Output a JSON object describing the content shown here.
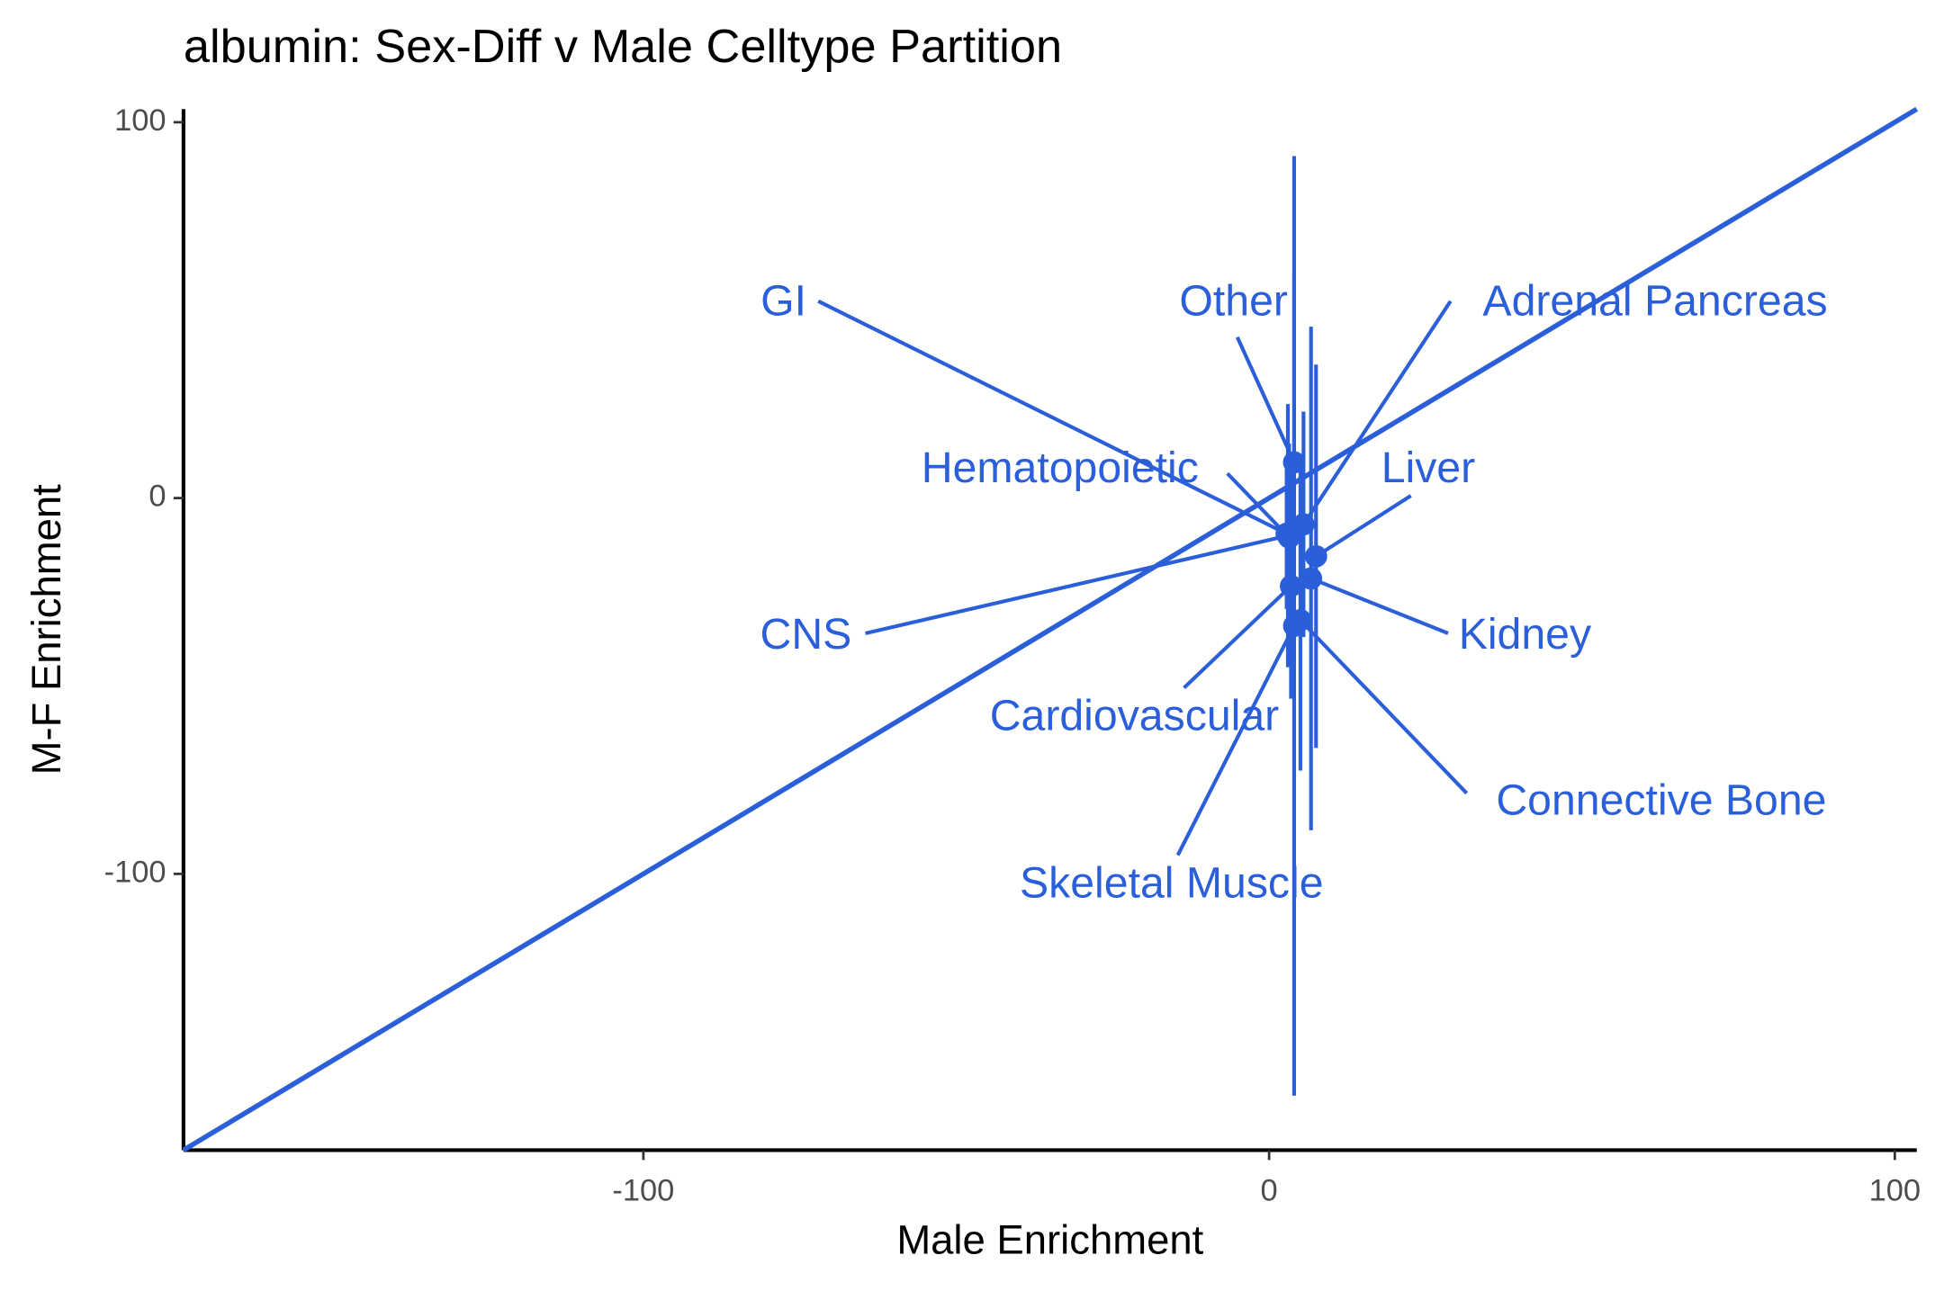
{
  "chart_data": {
    "type": "scatter",
    "title": "albumin: Sex-Diff v Male Celltype Partition",
    "xlabel": "Male Enrichment",
    "ylabel": "M-F Enrichment",
    "categories": [
      "Other",
      "GI",
      "Hematopoietic",
      "Adrenal Pancreas",
      "Liver",
      "CNS",
      "Kidney",
      "Cardiovascular",
      "Connective Bone",
      "Skeletal Muscle"
    ],
    "x": [
      4,
      2.8,
      3.2,
      5.5,
      7.5,
      3,
      6.7,
      3.5,
      5,
      4
    ],
    "values": [
      9.5,
      -9.5,
      -10.5,
      -7,
      -15.5,
      -10,
      -21.4,
      -23.4,
      -32.5,
      -34
    ],
    "errors": [
      50,
      20,
      25,
      30,
      51,
      35,
      67,
      30,
      40,
      125
    ],
    "color": "#2b5fd9",
    "identity_line": true,
    "xlim": [
      -173.5,
      103.5
    ],
    "ylim": [
      -173.5,
      103.5
    ],
    "xticks": [
      -100,
      0,
      100
    ],
    "yticks": [
      -100,
      0,
      100
    ]
  }
}
